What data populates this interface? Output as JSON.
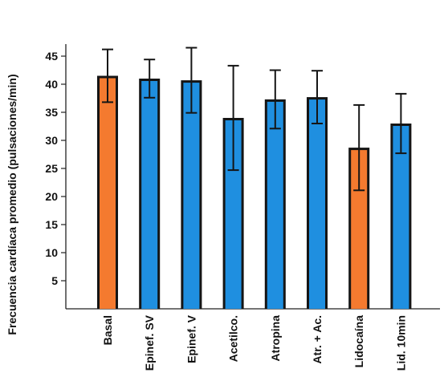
{
  "chart_data": {
    "type": "bar",
    "title": "",
    "ylabel": "Frecuencia cardíaca promedio (pulsaciones/min)",
    "xlabel": "",
    "ylim": [
      0,
      50
    ],
    "yticks": [
      5,
      10,
      15,
      20,
      25,
      30,
      35,
      40,
      45
    ],
    "grid": false,
    "legend": "none",
    "categories": [
      "Basal",
      "Epinef. SV",
      "Epinef. V",
      "Acetilco.",
      "Atropina",
      "Atr. + Ac.",
      "Lidocaína",
      "Lid. 10min"
    ],
    "values": [
      41.5,
      41.0,
      40.7,
      34.0,
      37.3,
      37.7,
      28.7,
      33.0
    ],
    "error_plus": [
      4.7,
      3.4,
      5.8,
      9.3,
      5.2,
      4.7,
      7.6,
      5.3
    ],
    "error_minus": [
      4.7,
      3.4,
      5.8,
      9.3,
      5.2,
      4.7,
      7.6,
      5.3
    ],
    "colors": [
      "#f47a2f",
      "#1f8fe0",
      "#1f8fe0",
      "#1f8fe0",
      "#1f8fe0",
      "#1f8fe0",
      "#f47a2f",
      "#1f8fe0"
    ]
  }
}
